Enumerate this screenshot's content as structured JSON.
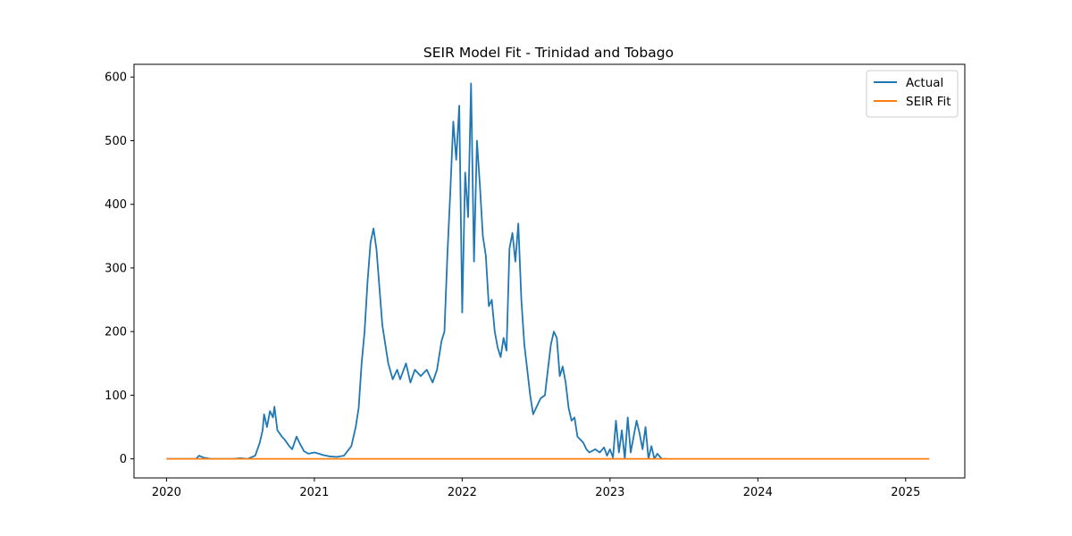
{
  "chart_data": {
    "type": "line",
    "title": "SEIR Model Fit - Trinidad and Tobago",
    "xlabel": "",
    "ylabel": "",
    "x_ticks": [
      "2020",
      "2021",
      "2022",
      "2023",
      "2024",
      "2025"
    ],
    "y_ticks": [
      "0",
      "100",
      "200",
      "300",
      "400",
      "500",
      "600"
    ],
    "xlim": [
      2019.78,
      2025.4
    ],
    "ylim": [
      -30,
      620
    ],
    "grid": false,
    "legend": {
      "placement": "top-right",
      "entries": [
        "Actual",
        "SEIR Fit"
      ]
    },
    "series": [
      {
        "name": "Actual",
        "color": "#1f77b4",
        "points": [
          [
            2020.0,
            0
          ],
          [
            2020.2,
            0
          ],
          [
            2020.22,
            5
          ],
          [
            2020.25,
            2
          ],
          [
            2020.3,
            0
          ],
          [
            2020.45,
            0
          ],
          [
            2020.5,
            1
          ],
          [
            2020.55,
            0
          ],
          [
            2020.57,
            2
          ],
          [
            2020.6,
            5
          ],
          [
            2020.63,
            25
          ],
          [
            2020.65,
            45
          ],
          [
            2020.66,
            70
          ],
          [
            2020.68,
            50
          ],
          [
            2020.7,
            75
          ],
          [
            2020.72,
            65
          ],
          [
            2020.73,
            82
          ],
          [
            2020.75,
            45
          ],
          [
            2020.78,
            35
          ],
          [
            2020.8,
            30
          ],
          [
            2020.83,
            20
          ],
          [
            2020.85,
            15
          ],
          [
            2020.88,
            35
          ],
          [
            2020.9,
            25
          ],
          [
            2020.93,
            12
          ],
          [
            2020.96,
            8
          ],
          [
            2021.0,
            10
          ],
          [
            2021.03,
            8
          ],
          [
            2021.06,
            6
          ],
          [
            2021.1,
            4
          ],
          [
            2021.15,
            3
          ],
          [
            2021.2,
            5
          ],
          [
            2021.25,
            20
          ],
          [
            2021.28,
            50
          ],
          [
            2021.3,
            80
          ],
          [
            2021.32,
            150
          ],
          [
            2021.34,
            200
          ],
          [
            2021.36,
            280
          ],
          [
            2021.38,
            340
          ],
          [
            2021.4,
            362
          ],
          [
            2021.42,
            330
          ],
          [
            2021.44,
            270
          ],
          [
            2021.46,
            210
          ],
          [
            2021.48,
            180
          ],
          [
            2021.5,
            150
          ],
          [
            2021.53,
            125
          ],
          [
            2021.56,
            140
          ],
          [
            2021.58,
            125
          ],
          [
            2021.62,
            150
          ],
          [
            2021.65,
            120
          ],
          [
            2021.68,
            140
          ],
          [
            2021.72,
            130
          ],
          [
            2021.76,
            140
          ],
          [
            2021.8,
            120
          ],
          [
            2021.83,
            140
          ],
          [
            2021.86,
            185
          ],
          [
            2021.88,
            200
          ],
          [
            2021.9,
            320
          ],
          [
            2021.92,
            420
          ],
          [
            2021.94,
            530
          ],
          [
            2021.96,
            470
          ],
          [
            2021.98,
            555
          ],
          [
            2022.0,
            230
          ],
          [
            2022.02,
            450
          ],
          [
            2022.04,
            380
          ],
          [
            2022.06,
            590
          ],
          [
            2022.08,
            310
          ],
          [
            2022.1,
            500
          ],
          [
            2022.12,
            430
          ],
          [
            2022.14,
            350
          ],
          [
            2022.16,
            320
          ],
          [
            2022.18,
            240
          ],
          [
            2022.2,
            250
          ],
          [
            2022.22,
            200
          ],
          [
            2022.24,
            175
          ],
          [
            2022.26,
            160
          ],
          [
            2022.28,
            190
          ],
          [
            2022.3,
            170
          ],
          [
            2022.32,
            330
          ],
          [
            2022.34,
            355
          ],
          [
            2022.36,
            310
          ],
          [
            2022.38,
            370
          ],
          [
            2022.4,
            250
          ],
          [
            2022.42,
            180
          ],
          [
            2022.44,
            140
          ],
          [
            2022.46,
            100
          ],
          [
            2022.48,
            70
          ],
          [
            2022.5,
            80
          ],
          [
            2022.53,
            95
          ],
          [
            2022.56,
            100
          ],
          [
            2022.58,
            140
          ],
          [
            2022.6,
            180
          ],
          [
            2022.62,
            200
          ],
          [
            2022.64,
            190
          ],
          [
            2022.66,
            130
          ],
          [
            2022.68,
            145
          ],
          [
            2022.7,
            120
          ],
          [
            2022.72,
            80
          ],
          [
            2022.74,
            60
          ],
          [
            2022.76,
            65
          ],
          [
            2022.78,
            35
          ],
          [
            2022.8,
            30
          ],
          [
            2022.82,
            25
          ],
          [
            2022.84,
            15
          ],
          [
            2022.86,
            10
          ],
          [
            2022.9,
            15
          ],
          [
            2022.93,
            10
          ],
          [
            2022.96,
            18
          ],
          [
            2022.98,
            5
          ],
          [
            2023.0,
            15
          ],
          [
            2023.02,
            2
          ],
          [
            2023.04,
            60
          ],
          [
            2023.06,
            10
          ],
          [
            2023.08,
            45
          ],
          [
            2023.1,
            0
          ],
          [
            2023.12,
            65
          ],
          [
            2023.14,
            10
          ],
          [
            2023.16,
            35
          ],
          [
            2023.18,
            60
          ],
          [
            2023.2,
            40
          ],
          [
            2023.22,
            15
          ],
          [
            2023.24,
            50
          ],
          [
            2023.26,
            0
          ],
          [
            2023.28,
            20
          ],
          [
            2023.3,
            0
          ],
          [
            2023.32,
            8
          ],
          [
            2023.35,
            0
          ],
          [
            2023.38,
            0
          ]
        ]
      },
      {
        "name": "SEIR Fit",
        "color": "#ff7f0e",
        "points": [
          [
            2020.0,
            0
          ],
          [
            2025.16,
            0
          ]
        ]
      }
    ]
  }
}
